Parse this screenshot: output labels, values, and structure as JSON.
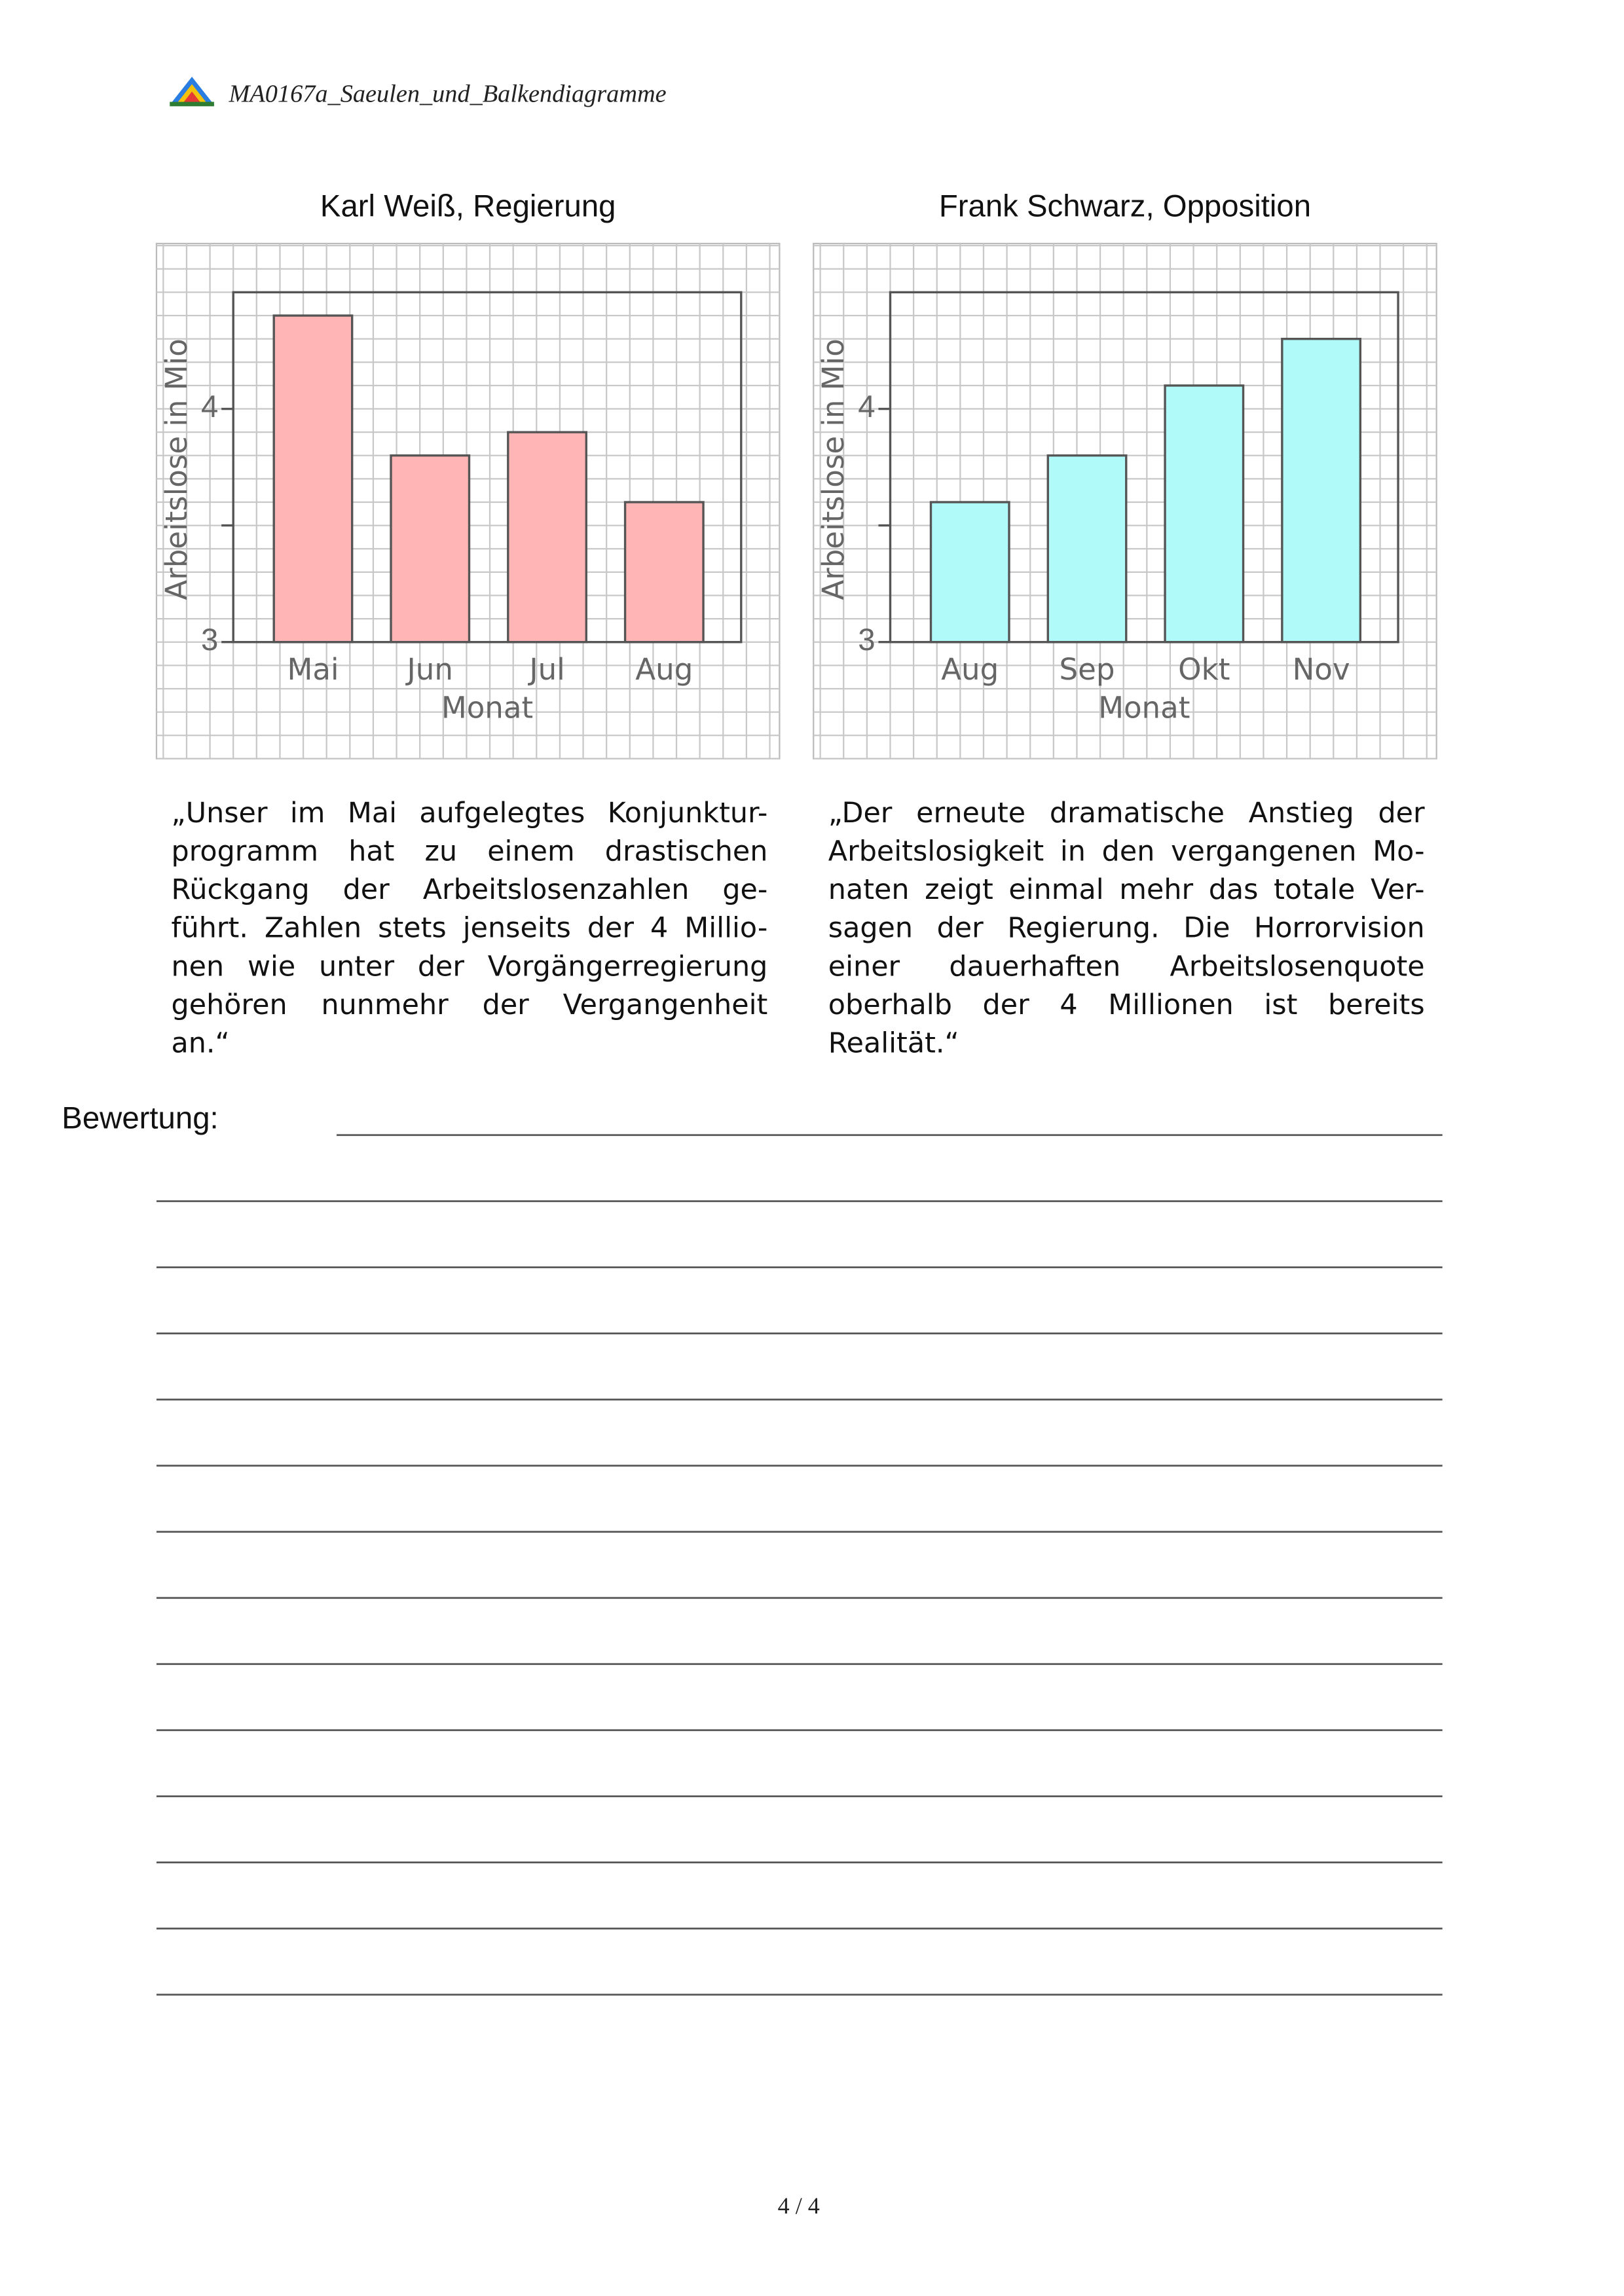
{
  "header": {
    "title": "MA0167a_Saeulen_und_Balkendiagramme"
  },
  "chart_data": [
    {
      "type": "bar",
      "title": "Karl Weiß, Regierung",
      "ylabel": "Arbeitslose in Mio",
      "xlabel": "Monat",
      "categories": [
        "Mai",
        "Jun",
        "Jul",
        "Aug"
      ],
      "values": [
        4.4,
        3.8,
        3.9,
        3.6
      ],
      "color": "#ffb5b5",
      "ylim": [
        3,
        4.5
      ],
      "yticks": [
        3,
        4
      ],
      "yminor": [
        3.5
      ]
    },
    {
      "type": "bar",
      "title": "Frank Schwarz, Opposition",
      "ylabel": "Arbeitslose in Mio",
      "xlabel": "Monat",
      "categories": [
        "Aug",
        "Sep",
        "Okt",
        "Nov"
      ],
      "values": [
        3.6,
        3.8,
        4.1,
        4.3
      ],
      "color": "#b0fafa",
      "ylim": [
        3,
        4.5
      ],
      "yticks": [
        3,
        4
      ],
      "yminor": [
        3.5
      ]
    }
  ],
  "quotes": [
    [
      "„Unser im Mai aufgelegtes Konjunktur-",
      "programm hat zu einem drastischen",
      "Rückgang der Arbeitslosenzahlen ge-",
      "führt. Zahlen stets jenseits der 4 Millio-",
      "nen wie unter der Vorgängerregierung",
      "gehören nunmehr der Vergangenheit",
      "an.“"
    ],
    [
      "„Der erneute dramatische Anstieg der",
      "Arbeitslosigkeit in den vergangenen Mo-",
      "naten zeigt einmal mehr das totale Ver-",
      "sagen der Regierung. Die Horrorvision",
      "einer dauerhaften Arbeitslosenquote",
      "oberhalb der 4 Millionen ist bereits",
      "Realität.“"
    ]
  ],
  "answer_label": "Bewertung:",
  "footer": {
    "page": "4 / 4"
  }
}
